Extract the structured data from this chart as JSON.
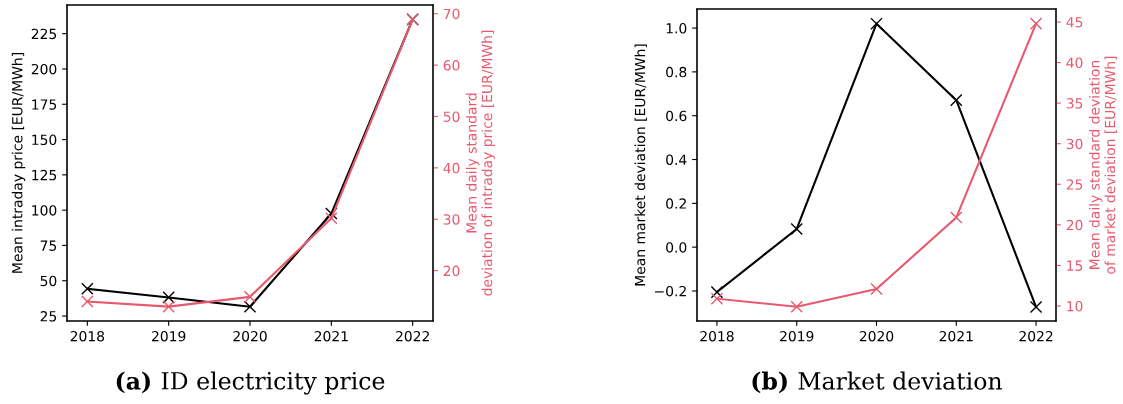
{
  "chart_data": [
    {
      "type": "line",
      "title": "(a) ID electricity price",
      "categories": [
        "2018",
        "2019",
        "2020",
        "2021",
        "2022"
      ],
      "ylabel": "Mean intraday price [EUR/MWh]",
      "y2label": "Mean daily standard\ndeviation of intraday price [EUR/MWh]",
      "ylim": [
        21.5,
        245.3
      ],
      "yticks": [
        25,
        50,
        75,
        100,
        125,
        150,
        175,
        200,
        225
      ],
      "y2lim": [
        10.2,
        71.7
      ],
      "y2ticks": [
        20,
        30,
        40,
        50,
        60,
        70
      ],
      "marker": "cross",
      "grid": false,
      "legend": false,
      "series": [
        {
          "color": "#000000",
          "values": [
            44.3,
            38.2,
            31.6,
            97.6,
            235.1
          ]
        },
        {
          "color": "#e8596e",
          "axis": "y2",
          "values": [
            14.0,
            13.0,
            14.9,
            30.2,
            68.9
          ]
        }
      ]
    },
    {
      "type": "line",
      "title": "(b) Market deviation",
      "categories": [
        "2018",
        "2019",
        "2020",
        "2021",
        "2022"
      ],
      "ylabel": "Mean market deviation [EUR/MWh]",
      "y2label": "Mean daily standard deviation\nof market deviation [EUR/MWh]",
      "ylim": [
        -0.337,
        1.087
      ],
      "yticks": [
        -0.2,
        {
          "value": 0,
          "label": "0.0"
        },
        0.2,
        0.4,
        0.6,
        0.8,
        {
          "value": 1,
          "label": "1.0"
        }
      ],
      "y2lim": [
        8.15,
        46.6
      ],
      "y2ticks": [
        10,
        15,
        20,
        25,
        30,
        35,
        40,
        45
      ],
      "marker": "cross",
      "grid": false,
      "legend": false,
      "series": [
        {
          "color": "#000000",
          "values": [
            -0.205,
            0.083,
            1.02,
            0.671,
            -0.273
          ]
        },
        {
          "color": "#e8596e",
          "axis": "y2",
          "values": [
            10.9,
            9.9,
            12.1,
            20.9,
            44.8
          ]
        }
      ]
    }
  ]
}
